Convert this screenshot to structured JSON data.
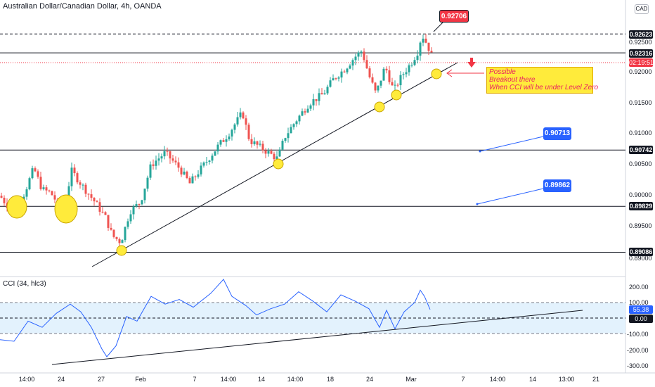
{
  "header": {
    "title": "Australian Dollar/Canadian Dollar, 4h, OANDA",
    "currency_badge": "CAD"
  },
  "chart_data": {
    "type": "candlestick",
    "symbol": "Australian Dollar/Canadian Dollar",
    "timeframe": "4h",
    "source": "OANDA",
    "price_axis": {
      "ticks": [
        "0.92500",
        "0.92000",
        "0.91500",
        "0.91000",
        "0.90500",
        "0.90000",
        "0.89500",
        "0.89000"
      ],
      "ylim": [
        0.8885,
        0.934
      ]
    },
    "time_axis": {
      "ticks": [
        "14:00",
        "24",
        "27",
        "Feb",
        "7",
        "14:00",
        "14",
        "14:00",
        "18",
        "24",
        "Mar",
        "7",
        "14:00",
        "14",
        "13:00",
        "21"
      ]
    },
    "horizontal_levels": [
      {
        "price": "0.92623",
        "style": "dashed"
      },
      {
        "price": "0.92316",
        "style": "solid"
      },
      {
        "price": "0.90742",
        "style": "solid"
      },
      {
        "price": "0.89829",
        "style": "solid"
      },
      {
        "price": "0.89086",
        "style": "solid"
      }
    ],
    "current_price": {
      "countdown": "02:19:51"
    },
    "callouts": [
      {
        "label": "0.92706",
        "color": "#f23645"
      },
      {
        "label": "0.90713",
        "color": "#2962ff"
      },
      {
        "label": "0.89862",
        "color": "#2962ff"
      }
    ],
    "annotation": {
      "lines": [
        "Possible",
        "Breakout there",
        "When CCI will be under Level Zero"
      ]
    },
    "cci_panel": {
      "title": "CCI (34, hlc3)",
      "ticks": [
        "200.00",
        "100.00",
        "-100.00",
        "-200.00",
        "-300.00"
      ],
      "current_value": "55.38",
      "zero_label": "0.00",
      "band": [
        -100,
        100
      ]
    },
    "colors": {
      "up": "#26a69a",
      "down": "#ef5350",
      "cci_line": "#2962ff",
      "highlight": "#ffeb3b"
    }
  }
}
